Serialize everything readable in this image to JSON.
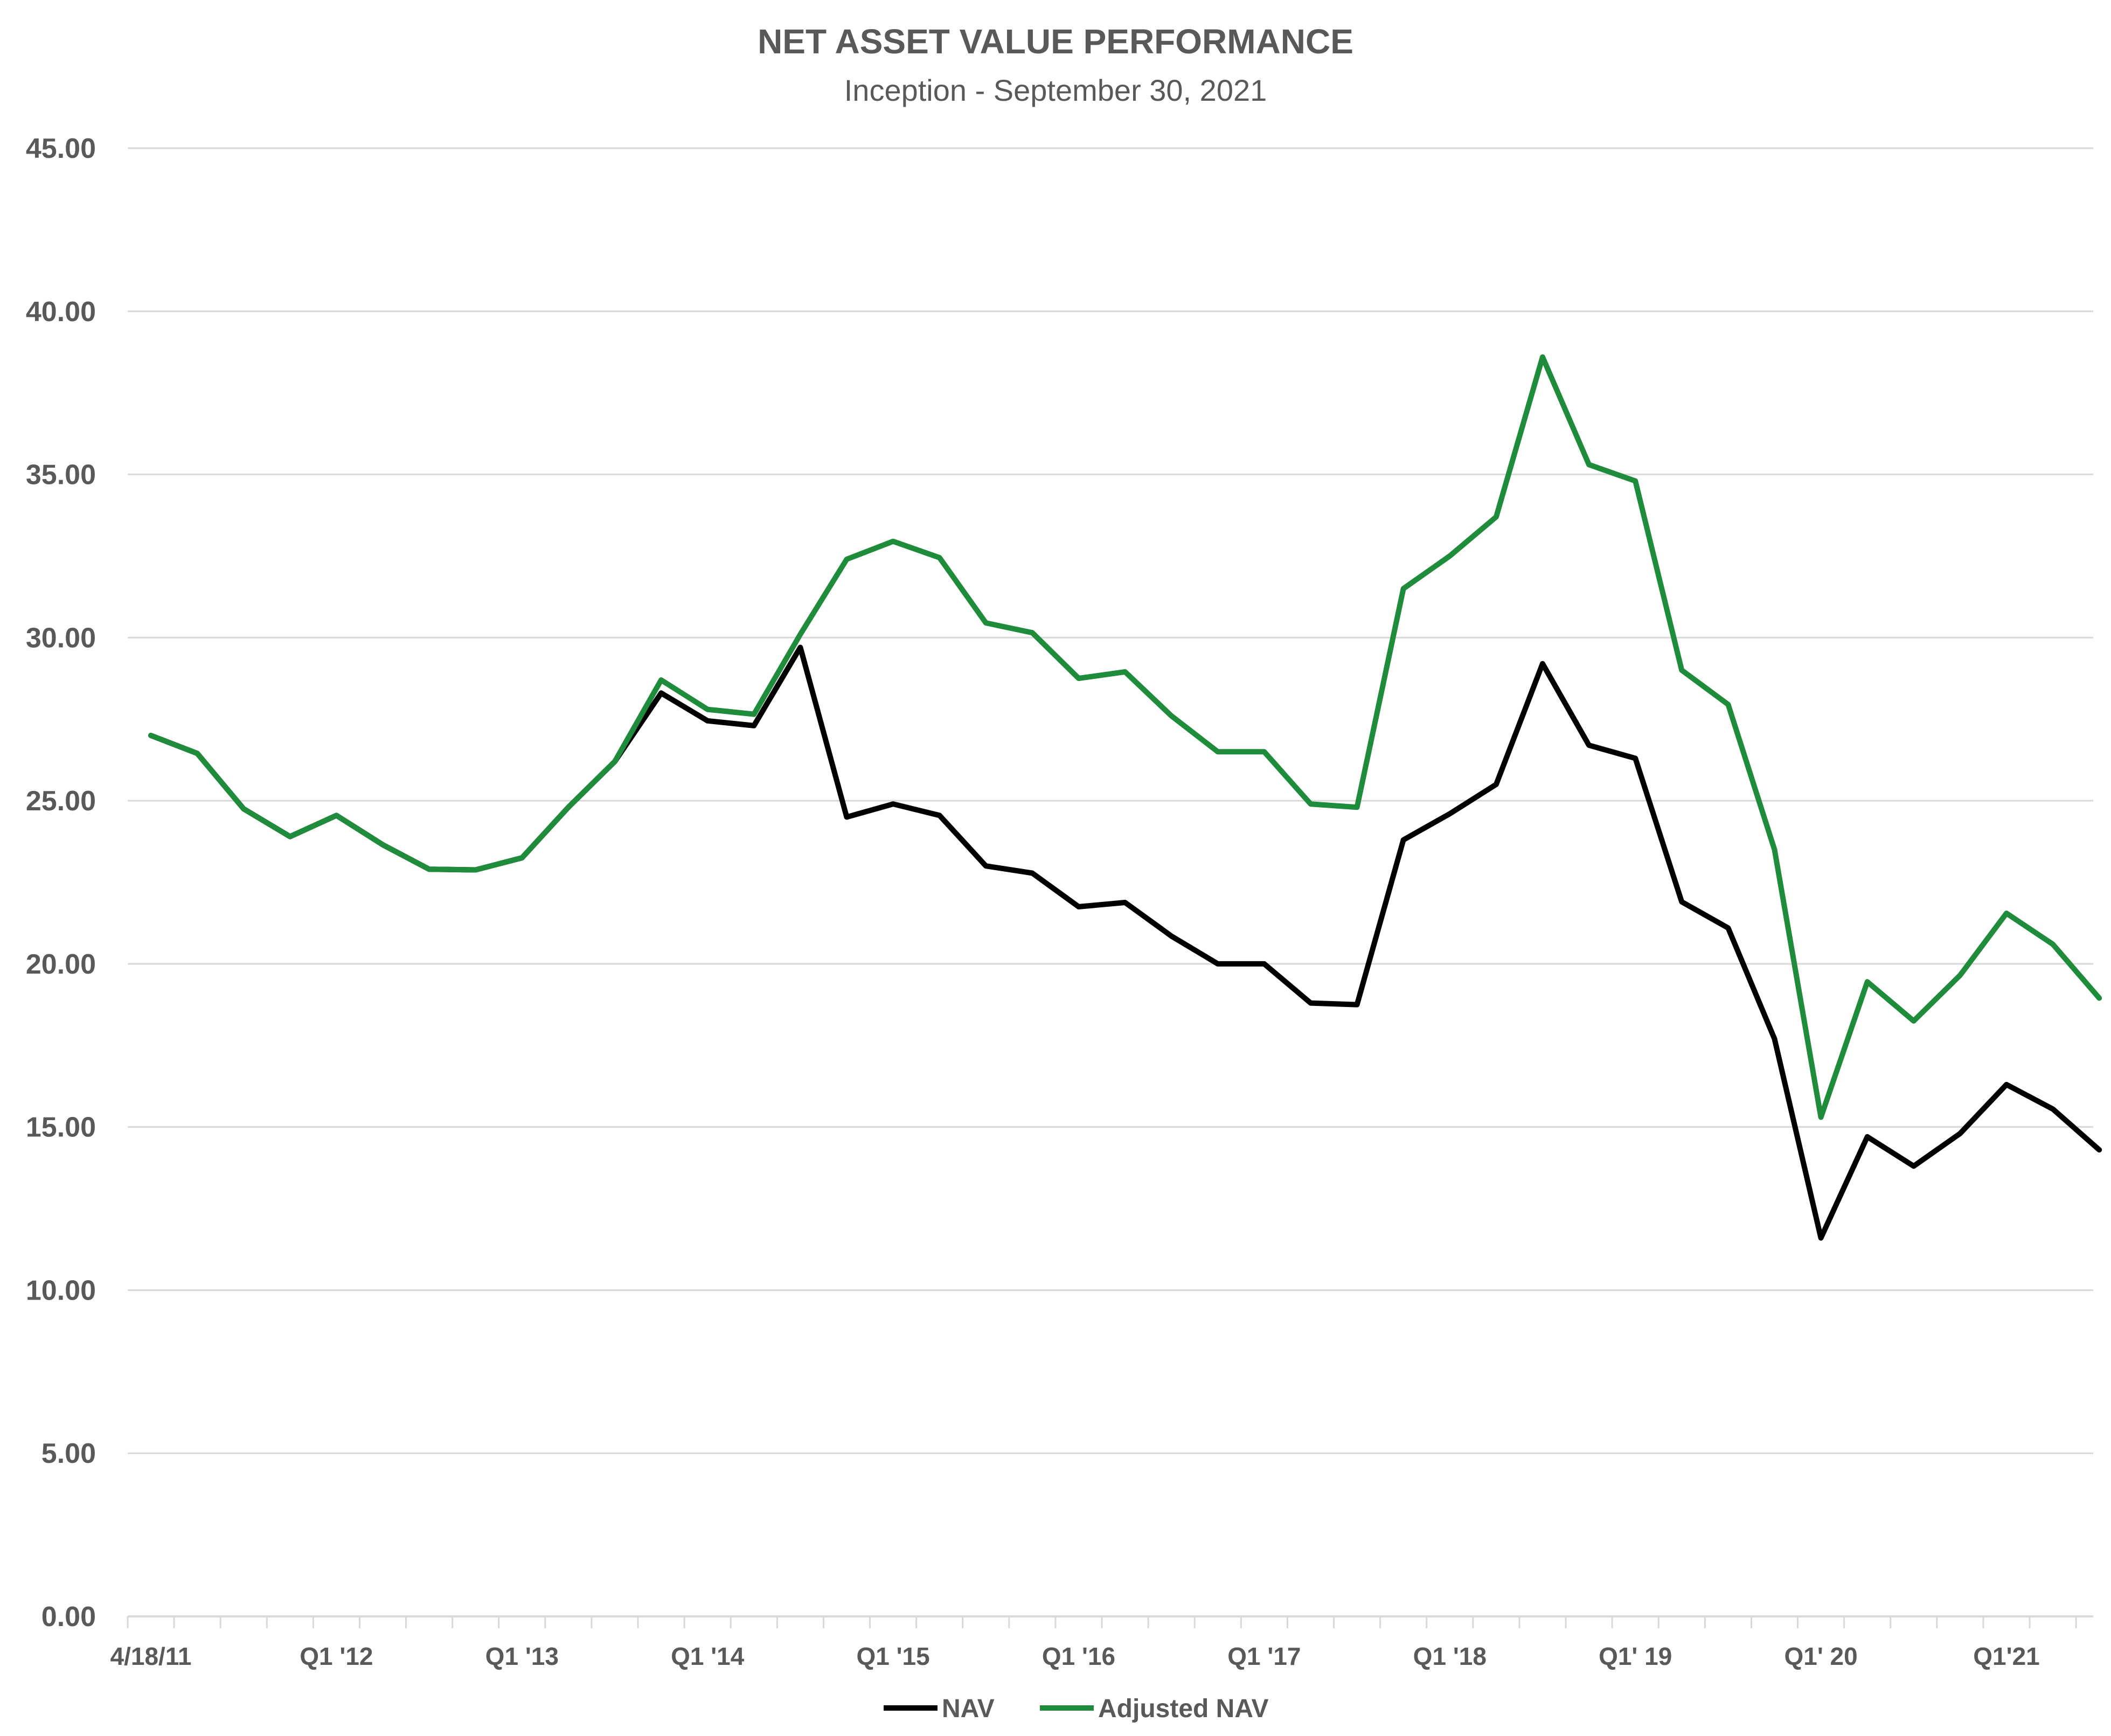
{
  "chart_data": {
    "type": "line",
    "title": "NET ASSET VALUE PERFORMANCE",
    "subtitle": "Inception - September 30, 2021",
    "xlabel": "",
    "ylabel": "",
    "ylim": [
      0,
      45
    ],
    "yticks": [
      "0.00",
      "5.00",
      "10.00",
      "15.00",
      "20.00",
      "25.00",
      "30.00",
      "35.00",
      "40.00",
      "45.00"
    ],
    "xtick_labels": [
      {
        "index": 0,
        "label": "4/18/11"
      },
      {
        "index": 4,
        "label": "Q1 '12"
      },
      {
        "index": 8,
        "label": "Q1 '13"
      },
      {
        "index": 12,
        "label": "Q1 '14"
      },
      {
        "index": 16,
        "label": "Q1 '15"
      },
      {
        "index": 20,
        "label": "Q1 '16"
      },
      {
        "index": 24,
        "label": "Q1 '17"
      },
      {
        "index": 28,
        "label": "Q1 '18"
      },
      {
        "index": 32,
        "label": "Q1' 19"
      },
      {
        "index": 36,
        "label": "Q1' 20"
      },
      {
        "index": 40,
        "label": "Q1'21"
      }
    ],
    "grid": true,
    "legend_position": "bottom",
    "series": [
      {
        "name": "NAV",
        "color": "#000000",
        "values": [
          27.0,
          26.45,
          24.75,
          23.9,
          24.55,
          23.65,
          22.9,
          22.88,
          23.25,
          24.8,
          26.2,
          28.3,
          27.45,
          27.3,
          29.7,
          24.5,
          24.9,
          24.55,
          23.0,
          22.78,
          21.75,
          21.88,
          20.85,
          20.0,
          20.0,
          18.8,
          18.75,
          23.8,
          24.6,
          25.5,
          29.2,
          26.7,
          26.3,
          21.9,
          21.1,
          17.7,
          11.6,
          14.7,
          13.8,
          14.8,
          16.3,
          15.55,
          14.3
        ]
      },
      {
        "name": "Adjusted NAV",
        "color": "#1e8c3a",
        "values": [
          27.0,
          26.45,
          24.75,
          23.9,
          24.55,
          23.65,
          22.9,
          22.88,
          23.25,
          24.8,
          26.2,
          28.7,
          27.8,
          27.65,
          30.1,
          32.4,
          32.95,
          32.45,
          30.45,
          30.15,
          28.75,
          28.95,
          27.6,
          26.5,
          26.5,
          24.9,
          24.8,
          31.5,
          32.5,
          33.7,
          38.6,
          35.3,
          34.8,
          29.0,
          27.95,
          23.5,
          15.3,
          19.45,
          18.25,
          19.65,
          21.55,
          20.6,
          18.95
        ]
      }
    ]
  }
}
